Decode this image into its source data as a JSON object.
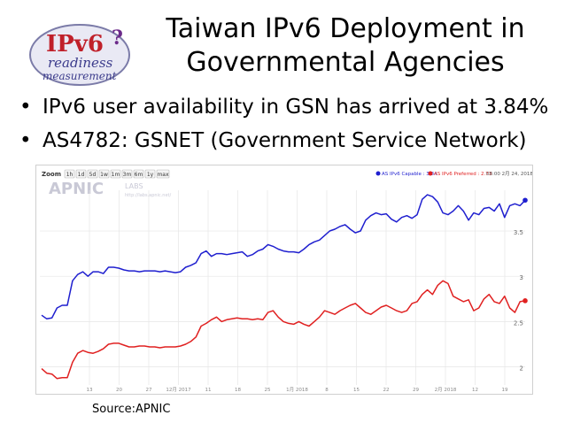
{
  "logo": {
    "line1": "IPv6",
    "line2": "readiness",
    "line3": "measurement",
    "badge": "?"
  },
  "slide": {
    "title_line1": "Taiwan IPv6 Deployment in",
    "title_line2": "Governmental Agencies",
    "bullets": [
      "IPv6 user availability in GSN has arrived at 3.84%",
      "AS4782: GSNET (Government Service Network)"
    ],
    "source": "Source:APNIC"
  },
  "chart_ui": {
    "zoom_label": "Zoom",
    "zoom_buttons": [
      "1h",
      "1d",
      "5d",
      "1w",
      "1m",
      "3m",
      "6m",
      "1y",
      "max"
    ],
    "brand": "APNIC",
    "brand_sub": "LABS",
    "brand_url": "http://labs.apnic.net/",
    "legend_capable": "AS IPv6 Capable : 3.84",
    "legend_preferred": "AS IPv6 Preferred : 2.73",
    "legend_time": "08:00 2月 24, 2018",
    "colors": {
      "capable": "#1f1fcf",
      "preferred": "#e02020",
      "grid": "#e6e6e6",
      "axis_text": "#888888"
    }
  },
  "chart_data": {
    "type": "line",
    "x_tick_labels": [
      "13",
      "20",
      "27",
      "12月 2017",
      "11",
      "18",
      "25",
      "1月 2018",
      "8",
      "15",
      "22",
      "29",
      "2月 2018",
      "12",
      "19"
    ],
    "y_tick_labels": [
      "2",
      "2.5",
      "3",
      "3.5"
    ],
    "ylim": [
      1.8,
      3.95
    ],
    "grid": true,
    "legend_position": "top-right",
    "series": [
      {
        "name": "AS IPv6 Capable",
        "color": "#1f1fcf",
        "values": [
          2.57,
          2.53,
          2.54,
          2.65,
          2.68,
          2.68,
          2.95,
          3.02,
          3.05,
          3.0,
          3.05,
          3.05,
          3.03,
          3.1,
          3.1,
          3.09,
          3.07,
          3.06,
          3.06,
          3.05,
          3.06,
          3.06,
          3.06,
          3.05,
          3.06,
          3.05,
          3.04,
          3.05,
          3.1,
          3.12,
          3.15,
          3.25,
          3.28,
          3.22,
          3.25,
          3.25,
          3.24,
          3.25,
          3.26,
          3.27,
          3.22,
          3.24,
          3.28,
          3.3,
          3.35,
          3.33,
          3.3,
          3.28,
          3.27,
          3.27,
          3.26,
          3.3,
          3.35,
          3.38,
          3.4,
          3.45,
          3.5,
          3.52,
          3.55,
          3.57,
          3.52,
          3.48,
          3.5,
          3.62,
          3.67,
          3.7,
          3.68,
          3.69,
          3.63,
          3.6,
          3.65,
          3.67,
          3.64,
          3.68,
          3.85,
          3.9,
          3.88,
          3.82,
          3.7,
          3.68,
          3.72,
          3.78,
          3.72,
          3.62,
          3.7,
          3.68,
          3.75,
          3.76,
          3.72,
          3.8,
          3.65,
          3.78,
          3.8,
          3.78,
          3.84
        ]
      },
      {
        "name": "AS IPv6 Preferred",
        "color": "#e02020",
        "values": [
          1.98,
          1.93,
          1.92,
          1.87,
          1.88,
          1.88,
          2.05,
          2.15,
          2.18,
          2.16,
          2.15,
          2.17,
          2.2,
          2.25,
          2.26,
          2.26,
          2.24,
          2.22,
          2.22,
          2.23,
          2.23,
          2.22,
          2.22,
          2.21,
          2.22,
          2.22,
          2.22,
          2.23,
          2.25,
          2.28,
          2.33,
          2.45,
          2.48,
          2.52,
          2.55,
          2.5,
          2.52,
          2.53,
          2.54,
          2.53,
          2.53,
          2.52,
          2.53,
          2.52,
          2.6,
          2.62,
          2.55,
          2.5,
          2.48,
          2.47,
          2.5,
          2.47,
          2.45,
          2.5,
          2.55,
          2.62,
          2.6,
          2.58,
          2.62,
          2.65,
          2.68,
          2.7,
          2.65,
          2.6,
          2.58,
          2.62,
          2.66,
          2.68,
          2.65,
          2.62,
          2.6,
          2.62,
          2.7,
          2.72,
          2.8,
          2.85,
          2.8,
          2.9,
          2.95,
          2.92,
          2.78,
          2.75,
          2.72,
          2.74,
          2.62,
          2.65,
          2.75,
          2.8,
          2.72,
          2.7,
          2.78,
          2.65,
          2.6,
          2.72,
          2.73
        ]
      }
    ]
  }
}
